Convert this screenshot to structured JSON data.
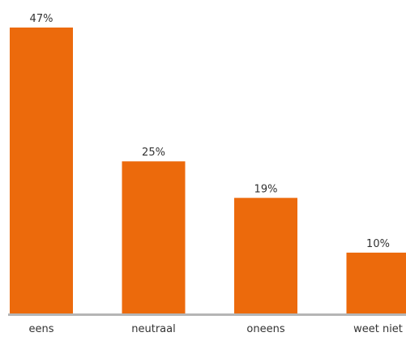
{
  "chart_data": {
    "type": "bar",
    "categories": [
      "eens",
      "neutraal",
      "oneens",
      "weet niet"
    ],
    "values": [
      47,
      25,
      19,
      10
    ],
    "value_labels": [
      "47%",
      "25%",
      "19%",
      "10%"
    ],
    "unit": "%",
    "ylim": [
      0,
      47
    ],
    "grid": false,
    "legend": "none",
    "colors": {
      "bar": "#ec6a0c",
      "axis": "#b5b5b5",
      "text": "#333333"
    }
  }
}
